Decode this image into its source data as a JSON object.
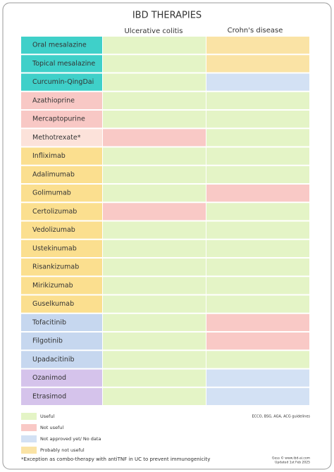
{
  "title": "IBD THERAPIES",
  "columns": [
    "Ulcerative colitis",
    "Crohn's disease"
  ],
  "rows": [
    {
      "name": "Oral mesalazine",
      "color": "#3fd0c9",
      "cells": [
        "#e4f4c6",
        "#fae3a5"
      ]
    },
    {
      "name": "Topical mesalazine",
      "color": "#3fd0c9",
      "cells": [
        "#e4f4c6",
        "#fae3a5"
      ]
    },
    {
      "name": "Curcumin-QingDai",
      "color": "#3fd0c9",
      "cells": [
        "#e4f4c6",
        "#d3e1f4"
      ]
    },
    {
      "name": "Azathioprine",
      "color": "#f8c8c5",
      "cells": [
        "#e4f4c6",
        "#e4f4c6"
      ]
    },
    {
      "name": "Mercaptopurine",
      "color": "#f8c8c5",
      "cells": [
        "#e4f4c6",
        "#e4f4c6"
      ]
    },
    {
      "name": "Methotrexate*",
      "color": "#fce2da",
      "cells": [
        "#f9c9c6",
        "#e4f4c6"
      ]
    },
    {
      "name": "Infliximab",
      "color": "#fbdf8f",
      "cells": [
        "#e4f4c6",
        "#e4f4c6"
      ]
    },
    {
      "name": "Adalimumab",
      "color": "#fbdf8f",
      "cells": [
        "#e4f4c6",
        "#e4f4c6"
      ]
    },
    {
      "name": "Golimumab",
      "color": "#fbdf8f",
      "cells": [
        "#e4f4c6",
        "#f9c9c6"
      ]
    },
    {
      "name": "Certolizumab",
      "color": "#fbdf8f",
      "cells": [
        "#f9c9c6",
        "#e4f4c6"
      ]
    },
    {
      "name": "Vedolizumab",
      "color": "#fbdf8f",
      "cells": [
        "#e4f4c6",
        "#e4f4c6"
      ]
    },
    {
      "name": "Ustekinumab",
      "color": "#fbdf8f",
      "cells": [
        "#e4f4c6",
        "#e4f4c6"
      ]
    },
    {
      "name": "Risankizumab",
      "color": "#fbdf8f",
      "cells": [
        "#e4f4c6",
        "#e4f4c6"
      ]
    },
    {
      "name": "Mirikizumab",
      "color": "#fbdf8f",
      "cells": [
        "#e4f4c6",
        "#e4f4c6"
      ]
    },
    {
      "name": "Guselkumab",
      "color": "#fbdf8f",
      "cells": [
        "#e4f4c6",
        "#e4f4c6"
      ]
    },
    {
      "name": "Tofacitinib",
      "color": "#c6d7ef",
      "cells": [
        "#e4f4c6",
        "#f9c9c6"
      ]
    },
    {
      "name": "Filgotinib",
      "color": "#c6d7ef",
      "cells": [
        "#e4f4c6",
        "#f9c9c6"
      ]
    },
    {
      "name": "Upadacitinib",
      "color": "#c6d7ef",
      "cells": [
        "#e4f4c6",
        "#e4f4c6"
      ]
    },
    {
      "name": "Ozanimod",
      "color": "#d5c3eb",
      "cells": [
        "#e4f4c6",
        "#d3e1f4"
      ]
    },
    {
      "name": "Etrasimod",
      "color": "#d5c3eb",
      "cells": [
        "#e4f4c6",
        "#d3e1f4"
      ]
    }
  ],
  "legend": [
    {
      "label": "Useful",
      "color": "#e4f4c6"
    },
    {
      "label": "Not useful",
      "color": "#f9c9c6"
    },
    {
      "label": "Not approved yet/ No data",
      "color": "#d3e1f4"
    },
    {
      "label": "Probably not useful",
      "color": "#fae3a5"
    }
  ],
  "source": "ECCO, BSG, AGA, ACG guidelines",
  "footnote": "*Exception as combo-therapy with antiTNF in UC to prevent immunogenicity",
  "credit": [
    "Gess © www.ibd-ai.com",
    "Updated 1st Feb 2025"
  ]
}
